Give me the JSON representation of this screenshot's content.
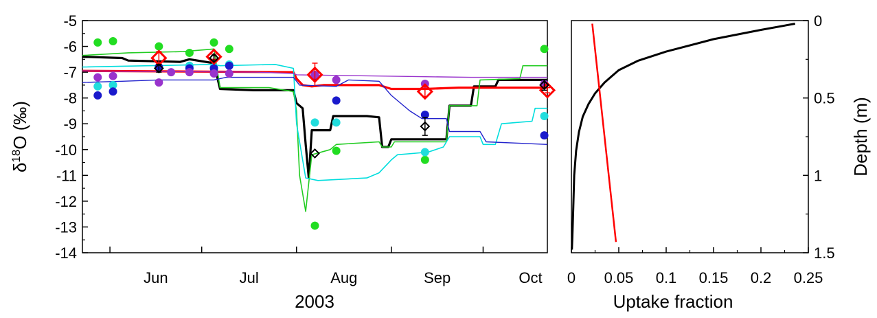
{
  "chart_data": [
    {
      "type": "line",
      "xlabel": "2003",
      "ylabel": "δ¹⁸O (‰)",
      "ylabel_parts": {
        "delta": "δ",
        "sup": "18",
        "rest": "O (‰)"
      },
      "ylim": [
        -14,
        -5
      ],
      "yticks": [
        "-14",
        "-13",
        "-12",
        "-11",
        "-10",
        "-9",
        "-8",
        "-7",
        "-6",
        "-5"
      ],
      "x_month_labels": [
        "Jun",
        "Jul",
        "Aug",
        "Sep",
        "Oct"
      ],
      "x_unit": "day of year 2003",
      "xlim": [
        143,
        295
      ],
      "month_boundaries": [
        152,
        182,
        213,
        244,
        274
      ],
      "grid": false,
      "series": [
        {
          "color": "#000000",
          "width": 3.2,
          "points": [
            [
              143,
              -6.4
            ],
            [
              156,
              -6.45
            ],
            [
              158,
              -6.55
            ],
            [
              175,
              -6.6
            ],
            [
              178,
              -6.5
            ],
            [
              186,
              -6.65
            ],
            [
              188,
              -7.65
            ],
            [
              199,
              -7.7
            ],
            [
              202,
              -7.7
            ],
            [
              212,
              -7.7
            ],
            [
              213,
              -8.2
            ],
            [
              215,
              -8.4
            ],
            [
              216,
              -9.8
            ],
            [
              217,
              -11.1
            ],
            [
              218,
              -9.25
            ],
            [
              224,
              -9.25
            ],
            [
              225,
              -8.7
            ],
            [
              236,
              -8.7
            ],
            [
              240,
              -8.75
            ],
            [
              241,
              -9.9
            ],
            [
              243,
              -9.9
            ],
            [
              244,
              -9.6
            ],
            [
              262,
              -9.6
            ],
            [
              263,
              -8.3
            ],
            [
              270,
              -8.3
            ],
            [
              271,
              -7.55
            ],
            [
              278,
              -7.55
            ],
            [
              279,
              -7.3
            ],
            [
              295,
              -7.3
            ]
          ]
        },
        {
          "color": "#ff0000",
          "width": 3.2,
          "points": [
            [
              143,
              -6.95
            ],
            [
              212,
              -7.0
            ],
            [
              213,
              -7.25
            ],
            [
              215,
              -7.5
            ],
            [
              218,
              -7.55
            ],
            [
              222,
              -7.5
            ],
            [
              240,
              -7.5
            ],
            [
              244,
              -7.65
            ],
            [
              255,
              -7.65
            ],
            [
              266,
              -7.6
            ],
            [
              295,
              -7.6
            ]
          ]
        },
        {
          "color": "#22cc22",
          "width": 1.6,
          "points": [
            [
              143,
              -6.35
            ],
            [
              158,
              -6.25
            ],
            [
              176,
              -6.2
            ],
            [
              186,
              -6.1
            ],
            [
              188,
              -7.6
            ],
            [
              204,
              -7.6
            ],
            [
              212,
              -7.75
            ],
            [
              213,
              -8.5
            ],
            [
              214,
              -11.0
            ],
            [
              216,
              -12.4
            ],
            [
              218,
              -10.2
            ],
            [
              224,
              -10.0
            ],
            [
              226,
              -9.8
            ],
            [
              240,
              -9.7
            ],
            [
              241,
              -9.9
            ],
            [
              244,
              -9.9
            ],
            [
              245,
              -9.7
            ],
            [
              262,
              -9.7
            ],
            [
              263,
              -8.3
            ],
            [
              272,
              -8.3
            ],
            [
              273,
              -7.3
            ],
            [
              286,
              -7.25
            ],
            [
              287,
              -6.75
            ],
            [
              295,
              -6.75
            ]
          ]
        },
        {
          "color": "#00dddd",
          "width": 1.6,
          "points": [
            [
              143,
              -6.8
            ],
            [
              186,
              -6.7
            ],
            [
              188,
              -6.75
            ],
            [
              206,
              -6.7
            ],
            [
              212,
              -6.85
            ],
            [
              213,
              -9.0
            ],
            [
              216,
              -11.1
            ],
            [
              220,
              -11.2
            ],
            [
              236,
              -11.1
            ],
            [
              240,
              -10.9
            ],
            [
              244,
              -10.4
            ],
            [
              246,
              -10.2
            ],
            [
              256,
              -10.1
            ],
            [
              261,
              -9.9
            ],
            [
              263,
              -9.5
            ],
            [
              273,
              -9.5
            ],
            [
              274,
              -9.8
            ],
            [
              278,
              -9.8
            ],
            [
              280,
              -9.0
            ],
            [
              290,
              -8.9
            ],
            [
              291,
              -8.4
            ],
            [
              295,
              -8.4
            ]
          ]
        },
        {
          "color": "#2222cc",
          "width": 1.4,
          "points": [
            [
              143,
              -7.4
            ],
            [
              156,
              -7.35
            ],
            [
              168,
              -7.3
            ],
            [
              186,
              -7.3
            ],
            [
              190,
              -7.2
            ],
            [
              212,
              -7.2
            ],
            [
              214,
              -7.5
            ],
            [
              226,
              -7.55
            ],
            [
              230,
              -7.3
            ],
            [
              240,
              -7.35
            ],
            [
              244,
              -7.9
            ],
            [
              250,
              -8.5
            ],
            [
              254,
              -8.8
            ],
            [
              262,
              -8.8
            ],
            [
              263,
              -9.3
            ],
            [
              273,
              -9.3
            ],
            [
              275,
              -9.7
            ],
            [
              295,
              -9.8
            ]
          ]
        },
        {
          "color": "#9933cc",
          "width": 1.4,
          "points": [
            [
              143,
              -6.95
            ],
            [
              200,
              -7.0
            ],
            [
              212,
              -7.05
            ],
            [
              213,
              -7.1
            ],
            [
              240,
              -7.15
            ],
            [
              270,
              -7.2
            ],
            [
              295,
              -7.2
            ]
          ]
        }
      ],
      "dots": [
        {
          "color": "#22dd22",
          "points": [
            [
              148,
              -5.85
            ],
            [
              153,
              -5.8
            ],
            [
              168,
              -6.0
            ],
            [
              178,
              -6.25
            ],
            [
              186,
              -5.85
            ],
            [
              191,
              -6.1
            ],
            [
              219,
              -12.95
            ],
            [
              226,
              -10.05
            ],
            [
              255,
              -10.4
            ],
            [
              294,
              -6.1
            ]
          ]
        },
        {
          "color": "#22dddd",
          "points": [
            [
              148,
              -7.55
            ],
            [
              153,
              -7.5
            ],
            [
              168,
              -6.8
            ],
            [
              178,
              -6.75
            ],
            [
              186,
              -6.8
            ],
            [
              191,
              -6.7
            ],
            [
              219,
              -8.95
            ],
            [
              226,
              -8.95
            ],
            [
              255,
              -10.1
            ],
            [
              294,
              -8.7
            ]
          ]
        },
        {
          "color": "#1a1acc",
          "points": [
            [
              148,
              -7.9
            ],
            [
              153,
              -7.75
            ],
            [
              168,
              -6.8
            ],
            [
              178,
              -6.85
            ],
            [
              186,
              -6.85
            ],
            [
              191,
              -6.75
            ],
            [
              219,
              -7.15
            ],
            [
              226,
              -8.1
            ],
            [
              255,
              -8.65
            ],
            [
              294,
              -9.45
            ]
          ]
        },
        {
          "color": "#9933cc",
          "points": [
            [
              148,
              -7.2
            ],
            [
              153,
              -7.15
            ],
            [
              168,
              -7.4
            ],
            [
              172,
              -7.0
            ],
            [
              178,
              -7.0
            ],
            [
              186,
              -7.05
            ],
            [
              191,
              -7.05
            ],
            [
              219,
              -7.1
            ],
            [
              226,
              -7.3
            ],
            [
              255,
              -7.45
            ],
            [
              294,
              -7.45
            ]
          ]
        }
      ],
      "diamonds_red": {
        "color": "#ff0000",
        "points": [
          [
            168,
            -6.45,
            0.25
          ],
          [
            186,
            -6.4,
            0.1
          ],
          [
            219,
            -7.1,
            0.45
          ],
          [
            255,
            -7.75,
            0.2
          ],
          [
            295,
            -7.7,
            0.1
          ]
        ]
      },
      "diamonds_black": {
        "color": "#000000",
        "points": [
          [
            168,
            -6.85,
            0.15
          ],
          [
            186,
            -6.45,
            0.1
          ],
          [
            219,
            -10.15,
            0.0
          ],
          [
            255,
            -9.1,
            0.35
          ],
          [
            294,
            -7.5,
            0.2
          ]
        ]
      }
    },
    {
      "type": "line",
      "xlabel": "Uptake fraction",
      "ylabel": "Depth (m)",
      "xlim": [
        0,
        0.25
      ],
      "ylim": [
        1.5,
        0
      ],
      "xticks": [
        "0",
        "0.05",
        "0.1",
        "0.15",
        "0.2",
        "0.25"
      ],
      "yticks": [
        "0",
        "0.5",
        "1",
        "1.5"
      ],
      "grid": false,
      "series": [
        {
          "color": "#000000",
          "width": 3,
          "points": [
            [
              0.236,
              0.02
            ],
            [
              0.2,
              0.06
            ],
            [
              0.15,
              0.12
            ],
            [
              0.1,
              0.2
            ],
            [
              0.07,
              0.26
            ],
            [
              0.05,
              0.32
            ],
            [
              0.035,
              0.4
            ],
            [
              0.025,
              0.47
            ],
            [
              0.018,
              0.54
            ],
            [
              0.012,
              0.62
            ],
            [
              0.008,
              0.72
            ],
            [
              0.005,
              0.84
            ],
            [
              0.003,
              1.0
            ],
            [
              0.002,
              1.2
            ],
            [
              0.001,
              1.4
            ],
            [
              0.0005,
              1.48
            ]
          ]
        },
        {
          "color": "#ff0000",
          "width": 2.5,
          "points": [
            [
              0.022,
              0.02
            ],
            [
              0.047,
              1.43
            ]
          ]
        }
      ]
    }
  ]
}
